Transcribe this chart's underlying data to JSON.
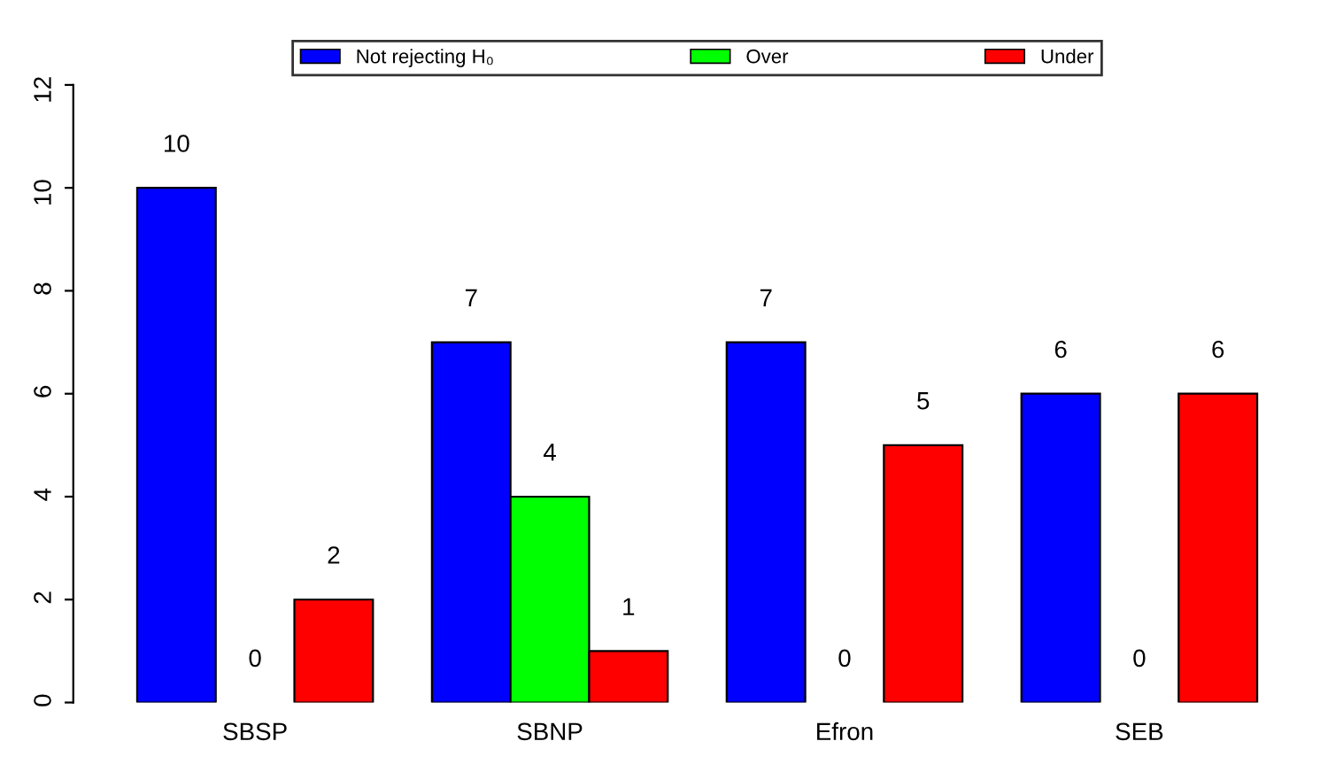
{
  "chart_data": {
    "type": "bar",
    "categories": [
      "SBSP",
      "SBNP",
      "Efron",
      "SEB"
    ],
    "series": [
      {
        "name": "Not rejecting H₀",
        "color": "#0000ff",
        "values": [
          10,
          7,
          7,
          6
        ]
      },
      {
        "name": "Over",
        "color": "#00ff00",
        "values": [
          0,
          4,
          0,
          0
        ]
      },
      {
        "name": "Under",
        "color": "#ff0000",
        "values": [
          2,
          1,
          5,
          6
        ]
      }
    ],
    "ylim": [
      0,
      12
    ],
    "yticks": [
      0,
      2,
      4,
      6,
      8,
      10,
      12
    ],
    "data_labels": true,
    "grid": false,
    "legend": "top"
  }
}
